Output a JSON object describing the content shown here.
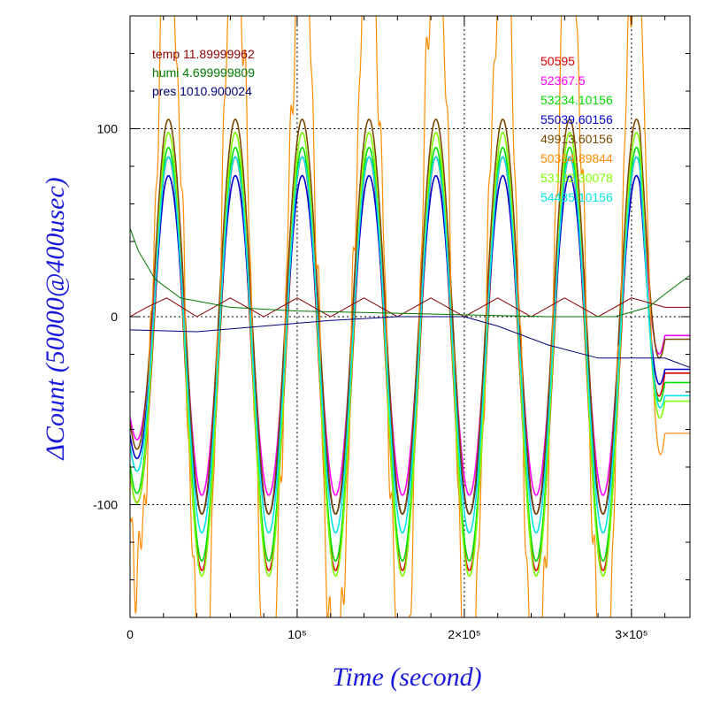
{
  "chart_data": {
    "type": "line",
    "xlabel": "Time (second)",
    "ylabel": "ΔCount (50000@400usec)",
    "xlim": [
      0,
      335000
    ],
    "ylim": [
      -160,
      160
    ],
    "grid": "dotted",
    "x_tick_labels": [
      {
        "value": 0,
        "label": "0"
      },
      {
        "value": 100000,
        "label": "10⁵"
      },
      {
        "value": 200000,
        "label": "2×10⁵"
      },
      {
        "value": 300000,
        "label": "3×10⁵"
      }
    ],
    "y_tick_labels": [
      {
        "value": -100,
        "label": "-100"
      },
      {
        "value": 0,
        "label": "0"
      },
      {
        "value": 100,
        "label": "100"
      }
    ],
    "period": 40000,
    "oscillation_phase_x": 23000,
    "env_legend_placement": "top-left",
    "series_legend_placement": "top-right",
    "env_series": [
      {
        "name": "temp 11.89999962",
        "color": "#8b0000",
        "x": [
          0,
          10000,
          22000,
          40000,
          60000,
          80000,
          100000,
          120000,
          140000,
          160000,
          180000,
          200000,
          220000,
          240000,
          260000,
          280000,
          300000,
          320000,
          335000
        ],
        "y": [
          0,
          5,
          10,
          0,
          10,
          0,
          10,
          0,
          10,
          0,
          10,
          0,
          10,
          0,
          10,
          0,
          10,
          5,
          5
        ]
      },
      {
        "name": "humi 4.699999809",
        "color": "#007a00",
        "x": [
          0,
          5000,
          15000,
          30000,
          60000,
          100000,
          150000,
          200000,
          250000,
          290000,
          310000,
          320000,
          335000
        ],
        "y": [
          47,
          35,
          20,
          10,
          5,
          3,
          2,
          1,
          0,
          0,
          5,
          12,
          22
        ]
      },
      {
        "name": "pres 1010.900024",
        "color": "#00007a",
        "x": [
          0,
          40000,
          80000,
          120000,
          160000,
          200000,
          220000,
          250000,
          280000,
          300000,
          320000,
          335000
        ],
        "y": [
          -7,
          -8,
          -5,
          -2,
          0,
          0,
          -5,
          -15,
          -22,
          -22,
          -22,
          -27
        ]
      }
    ],
    "series": [
      {
        "name": "50595",
        "color": "#e00000",
        "amp": 110,
        "base": -25,
        "end": -30
      },
      {
        "name": "52367.5",
        "color": "#ff00ff",
        "amp": 90,
        "base": -5,
        "end": -10
      },
      {
        "name": "53234.10156",
        "color": "#00e000",
        "amp": 110,
        "base": -20,
        "end": -35
      },
      {
        "name": "55039.60156",
        "color": "#0000cc",
        "amp": 90,
        "base": -15,
        "end": -28
      },
      {
        "name": "49913.60156",
        "color": "#7a4a00",
        "amp": 105,
        "base": 0,
        "end": -12
      },
      {
        "name": "50354.89844",
        "color": "#ff8c00",
        "amp": 200,
        "base": 0,
        "end": -62
      },
      {
        "name": "53192.30078",
        "color": "#80ff00",
        "amp": 118,
        "base": -20,
        "end": -45
      },
      {
        "name": "54435.10156",
        "color": "#00e6e6",
        "amp": 100,
        "base": -15,
        "end": -42
      }
    ]
  }
}
